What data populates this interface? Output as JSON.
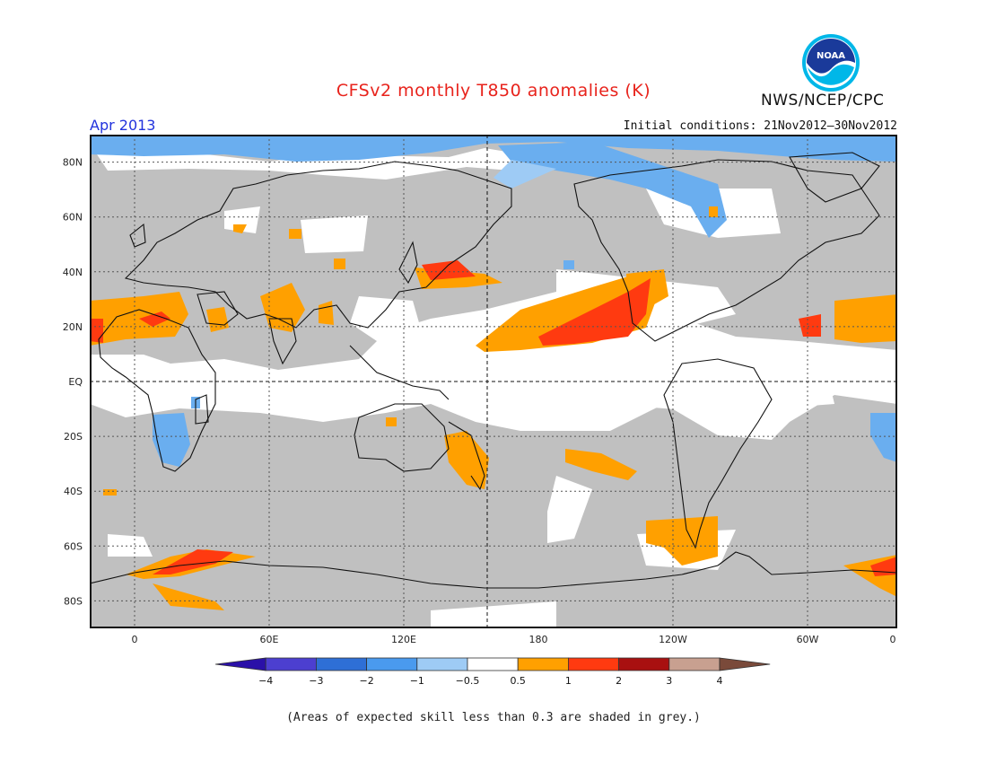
{
  "header": {
    "title": "CFSv2 monthly T850 anomalies (K)",
    "period": "Apr 2013",
    "initial_conditions": "Initial conditions: 21Nov2012–30Nov2012",
    "agency": "NWS/NCEP/CPC",
    "logo_text": "NOAA"
  },
  "map": {
    "lat_labels": [
      "80N",
      "60N",
      "40N",
      "20N",
      "EQ",
      "20S",
      "40S",
      "60S",
      "80S"
    ],
    "lon_labels": [
      "0",
      "60E",
      "120E",
      "180",
      "120W",
      "60W",
      "0"
    ],
    "colors": {
      "grey_low_skill": "#c0c0c0",
      "cool_0_5_1": "#9ecbf5",
      "cool_1_2": "#6aaeef",
      "warm_0_5_1": "#ffa000",
      "warm_1_2": "#ff3a10"
    }
  },
  "legend": {
    "tick_labels": [
      "−4",
      "−3",
      "−2",
      "−1",
      "−0.5",
      "0.5",
      "1",
      "2",
      "3",
      "4"
    ],
    "colors": [
      "#2a10a8",
      "#4c3fd0",
      "#2e6fd6",
      "#4a9aee",
      "#9ecbf5",
      "#ffffff",
      "#ffa000",
      "#ff3a10",
      "#a81010",
      "#c8a090",
      "#7a4a3a"
    ]
  },
  "footnote": "(Areas of expected skill less than 0.3 are shaded in grey.)"
}
